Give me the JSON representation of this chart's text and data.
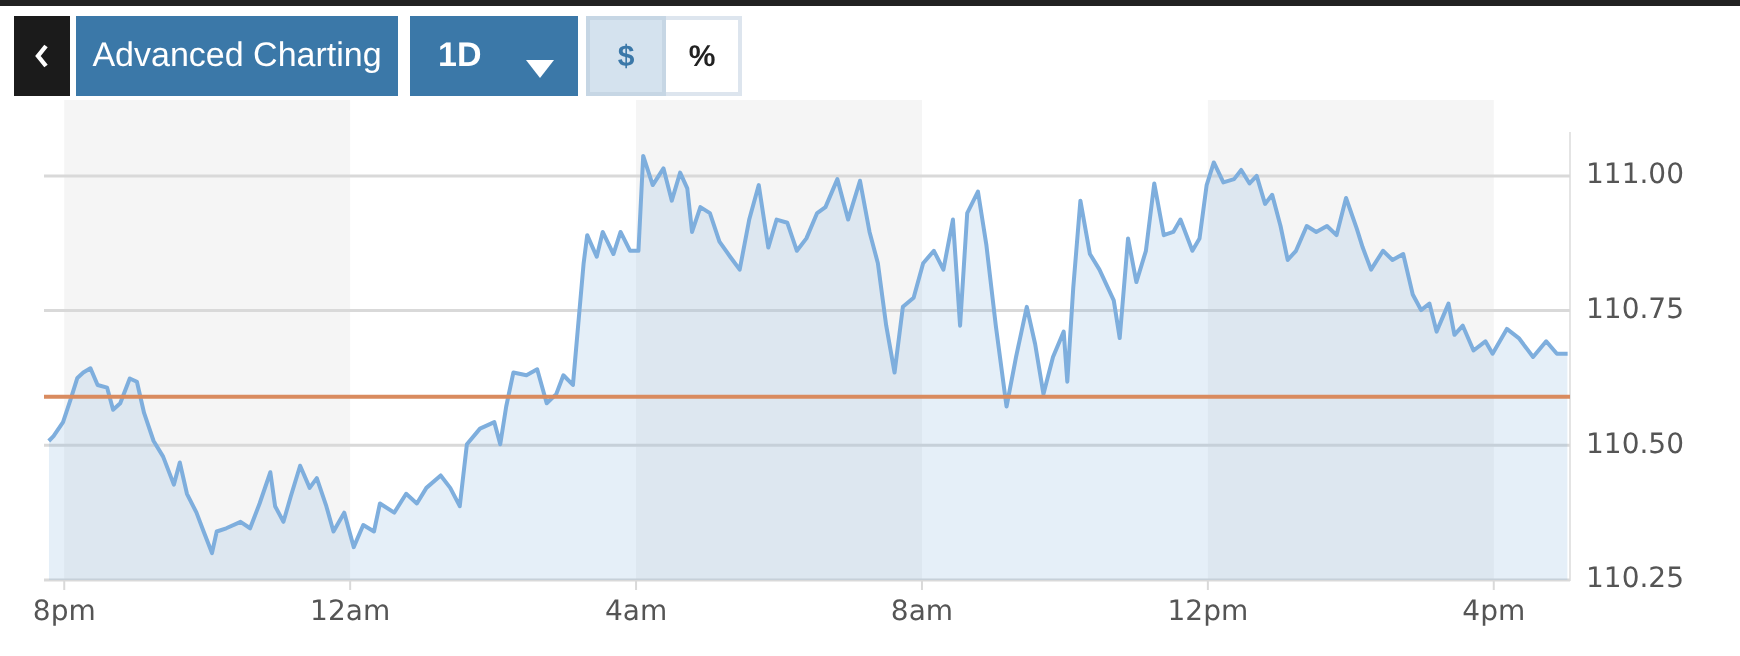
{
  "chart_data": {
    "type": "area",
    "annotations": [
      "Advanced Charting",
      "1D",
      "$",
      "%"
    ],
    "x": [
      "--01-01T19:47",
      "--01-01T19:51",
      "--01-01T19:59",
      "--01-01T20:05",
      "--01-01T20:11",
      "--01-01T20:16",
      "--01-01T20:22",
      "--01-01T20:28",
      "--01-01T20:36",
      "--01-01T20:41",
      "--01-01T20:47",
      "--01-01T20:55",
      "--01-01T21:01",
      "--01-01T21:07",
      "--01-01T21:15",
      "--01-01T21:23",
      "--01-01T21:32",
      "--01-01T21:37",
      "--01-01T21:43",
      "--01-01T21:51",
      "--01-01T21:57",
      "--01-01T22:04",
      "--01-01T22:08",
      "--01-01T22:16",
      "--01-01T22:28",
      "--01-01T22:36",
      "--01-01T22:44",
      "--01-01T22:53",
      "--01-01T22:57",
      "--01-01T23:04",
      "--01-01T23:10",
      "--01-01T23:18",
      "--01-01T23:26",
      "--01-01T23:32",
      "--01-01T23:40",
      "--01-01T23:46",
      "--01-01T23:55",
      "--01-02T00:03",
      "--01-02T00:11",
      "--01-02T00:20",
      "--01-02T00:25",
      "--01-02T00:37",
      "--01-02T00:47",
      "--01-02T00:56",
      "--01-02T01:04",
      "--01-02T01:16",
      "--01-02T01:24",
      "--01-02T01:32",
      "--01-02T01:38",
      "--01-02T01:49",
      "--01-02T02:01",
      "--01-02T02:06",
      "--01-02T02:11",
      "--01-02T02:17",
      "--01-02T02:28",
      "--01-02T02:37",
      "--01-02T02:45",
      "--01-02T02:53",
      "--01-02T02:59",
      "--01-02T03:07",
      "--01-02T03:16",
      "--01-02T03:19",
      "--01-02T03:27",
      "--01-02T03:32",
      "--01-02T03:41",
      "--01-02T03:47",
      "--01-02T03:55",
      "--01-02T04:02",
      "--01-02T04:06",
      "--01-02T04:14",
      "--01-02T04:23",
      "--01-02T04:30",
      "--01-02T04:37",
      "--01-02T04:43",
      "--01-02T04:47",
      "--01-02T04:54",
      "--01-02T05:02",
      "--01-02T05:10",
      "--01-02T05:19",
      "--01-02T05:27",
      "--01-02T05:35",
      "--01-02T05:43",
      "--01-02T05:51",
      "--01-02T05:58",
      "--01-02T06:07",
      "--01-02T06:15",
      "--01-02T06:23",
      "--01-02T06:32",
      "--01-02T06:39",
      "--01-02T06:49",
      "--01-02T06:58",
      "--01-02T07:08",
      "--01-02T07:16",
      "--01-02T07:23",
      "--01-02T07:30",
      "--01-02T07:37",
      "--01-02T07:44",
      "--01-02T07:53",
      "--01-02T08:01",
      "--01-02T08:10",
      "--01-02T08:18",
      "--01-02T08:26",
      "--01-02T08:32",
      "--01-02T08:38",
      "--01-02T08:47",
      "--01-02T08:54",
      "--01-02T09:02",
      "--01-02T09:11",
      "--01-02T09:19",
      "--01-02T09:28",
      "--01-02T09:35",
      "--01-02T09:42",
      "--01-02T09:50",
      "--01-02T09:59",
      "--01-02T10:02",
      "--01-02T10:07",
      "--01-02T10:13",
      "--01-02T10:21",
      "--01-02T10:29",
      "--01-02T10:41",
      "--01-02T10:46",
      "--01-02T10:53",
      "--01-02T11:00",
      "--01-02T11:08",
      "--01-02T11:15",
      "--01-02T11:23",
      "--01-02T11:31",
      "--01-02T11:37",
      "--01-02T11:47",
      "--01-02T11:53",
      "--01-02T11:59",
      "--01-02T12:05",
      "--01-02T12:13",
      "--01-02T12:22",
      "--01-02T12:28",
      "--01-02T12:35",
      "--01-02T12:41",
      "--01-02T12:48",
      "--01-02T12:54",
      "--01-02T13:01",
      "--01-02T13:07",
      "--01-02T13:14",
      "--01-02T13:23",
      "--01-02T13:31",
      "--01-02T13:40",
      "--01-02T13:48",
      "--01-02T13:56",
      "--01-02T14:05",
      "--01-02T14:10",
      "--01-02T14:17",
      "--01-02T14:27",
      "--01-02T14:35",
      "--01-02T14:44",
      "--01-02T14:52",
      "--01-02T14:59",
      "--01-02T15:06",
      "--01-02T15:12",
      "--01-02T15:22",
      "--01-02T15:27",
      "--01-02T15:34",
      "--01-02T15:43",
      "--01-02T15:53",
      "--01-02T15:59",
      "--01-02T16:11",
      "--01-02T16:21",
      "--01-02T16:33",
      "--01-02T16:44",
      "--01-02T16:53",
      "--01-02T17:02"
    ],
    "series": [
      {
        "color": "#7eaedd",
        "values": [
          110.508,
          110.517,
          110.543,
          110.583,
          110.625,
          110.635,
          110.643,
          110.612,
          110.607,
          110.566,
          110.578,
          110.624,
          110.618,
          110.56,
          110.508,
          110.479,
          110.427,
          110.468,
          110.41,
          110.375,
          110.34,
          110.3,
          110.34,
          110.346,
          110.358,
          110.346,
          110.392,
          110.45,
          110.387,
          110.358,
          110.404,
          110.462,
          110.421,
          110.439,
          110.387,
          110.34,
          110.375,
          110.311,
          110.352,
          110.34,
          110.392,
          110.375,
          110.41,
          110.392,
          110.421,
          110.444,
          110.421,
          110.387,
          110.502,
          110.531,
          110.543,
          110.502,
          110.572,
          110.635,
          110.63,
          110.641,
          110.578,
          110.595,
          110.63,
          110.612,
          110.838,
          110.89,
          110.85,
          110.896,
          110.855,
          110.896,
          110.861,
          110.861,
          111.037,
          110.983,
          111.014,
          110.954,
          111.006,
          110.977,
          110.896,
          110.942,
          110.931,
          110.878,
          110.85,
          110.826,
          110.919,
          110.983,
          110.867,
          110.919,
          110.913,
          110.861,
          110.884,
          110.931,
          110.942,
          110.994,
          110.919,
          110.991,
          110.896,
          110.838,
          110.722,
          110.635,
          110.757,
          110.774,
          110.838,
          110.861,
          110.826,
          110.919,
          110.722,
          110.931,
          110.971,
          110.873,
          110.722,
          110.572,
          110.664,
          110.757,
          110.688,
          110.595,
          110.664,
          110.711,
          110.618,
          110.792,
          110.954,
          110.855,
          110.826,
          110.769,
          110.699,
          110.884,
          110.803,
          110.861,
          110.986,
          110.89,
          110.896,
          110.919,
          110.861,
          110.884,
          110.983,
          111.025,
          110.988,
          110.994,
          111.011,
          110.986,
          111.0,
          110.948,
          110.965,
          110.907,
          110.844,
          110.861,
          110.907,
          110.896,
          110.907,
          110.89,
          110.959,
          110.902,
          110.867,
          110.826,
          110.861,
          110.844,
          110.855,
          110.78,
          110.751,
          110.763,
          110.711,
          110.763,
          110.705,
          110.722,
          110.676,
          110.693,
          110.67,
          110.716,
          110.699,
          110.664,
          110.693,
          110.67,
          110.67
        ]
      }
    ],
    "xlim": [
      "--01-01T19:43",
      "--01-02T17:04"
    ],
    "xticks": [
      {
        "value": "--01-01T20:00",
        "label": "8pm"
      },
      {
        "value": "--01-02T00:00",
        "label": "12am"
      },
      {
        "value": "--01-02T04:00",
        "label": "4am"
      },
      {
        "value": "--01-02T08:00",
        "label": "8am"
      },
      {
        "value": "--01-02T12:00",
        "label": "12pm"
      },
      {
        "value": "--01-02T16:00",
        "label": "4pm"
      }
    ],
    "ylim": [
      110.25,
      111.08
    ],
    "yticks": [
      {
        "value": 110.25,
        "label": "110.25"
      },
      {
        "value": 110.5,
        "label": "110.50"
      },
      {
        "value": 110.75,
        "label": "110.75"
      },
      {
        "value": 111,
        "label": "111.00"
      }
    ],
    "ref_lines": [
      {
        "axis": "y",
        "value": 110.59,
        "color": "#d98b5f"
      }
    ],
    "bands": [
      {
        "axis": "x",
        "from": "--01-01T20:00",
        "to": "--01-02T00:00",
        "color": "#f5f5f5"
      },
      {
        "axis": "x",
        "from": "--01-02T04:00",
        "to": "--01-02T08:00",
        "color": "#f5f5f5"
      },
      {
        "axis": "x",
        "from": "--01-02T12:00",
        "to": "--01-02T16:00",
        "color": "#f5f5f5"
      }
    ],
    "grid": "y",
    "legend": false
  }
}
